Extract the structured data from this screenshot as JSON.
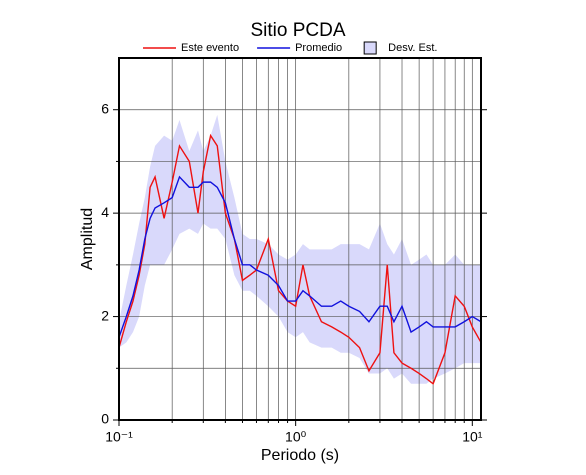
{
  "chart_data": {
    "type": "line",
    "title": "Sitio PCDA",
    "xlabel": "Periodo (s)",
    "ylabel": "Amplitud",
    "log_x": true,
    "xlim": [
      0.1,
      11.2
    ],
    "ylim": [
      0,
      7
    ],
    "xticks": [
      {
        "value": 0.1,
        "label": "10⁻¹"
      },
      {
        "value": 1,
        "label": "10⁰"
      },
      {
        "value": 10,
        "label": "10¹"
      }
    ],
    "xminor": [
      0.2,
      0.3,
      0.4,
      0.5,
      0.6,
      0.7,
      0.8,
      0.9,
      2,
      3,
      4,
      5,
      6,
      7,
      8,
      9
    ],
    "yticks": [
      0,
      2,
      4,
      6
    ],
    "yminor": [
      1,
      3,
      5
    ],
    "grid": true,
    "x": [
      0.1,
      0.11,
      0.12,
      0.13,
      0.14,
      0.15,
      0.16,
      0.18,
      0.2,
      0.22,
      0.25,
      0.28,
      0.3,
      0.33,
      0.36,
      0.4,
      0.45,
      0.5,
      0.55,
      0.6,
      0.7,
      0.8,
      0.9,
      1.0,
      1.1,
      1.2,
      1.4,
      1.6,
      1.8,
      2.0,
      2.3,
      2.6,
      3.0,
      3.3,
      3.6,
      4,
      4.5,
      5,
      5.5,
      6,
      7,
      8,
      9,
      10,
      11.2
    ],
    "band": {
      "name": "Desv. Est.",
      "color": "#d9d9fb",
      "upper": [
        1.9,
        2.6,
        3.2,
        3.8,
        4.3,
        4.9,
        5.3,
        5.5,
        5.4,
        5.8,
        5.2,
        5.6,
        5.2,
        5.5,
        5.9,
        5.0,
        4.3,
        3.6,
        3.5,
        3.5,
        3.4,
        3.2,
        3.1,
        3.2,
        3.4,
        3.3,
        3.3,
        3.3,
        3.4,
        3.4,
        3.4,
        3.3,
        3.8,
        3.4,
        3.2,
        3.5,
        3.0,
        3.1,
        3.2,
        3.0,
        3.0,
        3.2,
        3.0,
        3.0,
        3.0
      ],
      "lower": [
        1.4,
        1.5,
        1.7,
        2.0,
        2.6,
        3.0,
        3.0,
        3.0,
        3.3,
        3.6,
        3.7,
        3.6,
        3.8,
        3.7,
        3.7,
        3.5,
        2.8,
        2.5,
        2.5,
        2.4,
        2.2,
        2.0,
        1.7,
        1.6,
        1.7,
        1.5,
        1.4,
        1.4,
        1.3,
        1.3,
        1.2,
        0.9,
        0.9,
        1.0,
        0.8,
        0.9,
        0.7,
        0.7,
        0.7,
        0.8,
        0.9,
        1.0,
        1.1,
        1.1,
        1.1
      ]
    },
    "series": [
      {
        "name": "Este evento",
        "color": "#ee1111",
        "values": [
          1.4,
          1.9,
          2.3,
          2.8,
          3.4,
          4.5,
          4.7,
          3.9,
          4.6,
          5.3,
          5.0,
          4.0,
          4.8,
          5.5,
          5.3,
          4.0,
          3.5,
          2.7,
          2.8,
          2.9,
          3.5,
          2.5,
          2.3,
          2.2,
          3.0,
          2.4,
          1.9,
          1.8,
          1.7,
          1.6,
          1.4,
          0.95,
          1.3,
          3.0,
          1.3,
          1.1,
          1.0,
          0.9,
          0.8,
          0.7,
          1.3,
          2.4,
          2.2,
          1.8,
          1.5
        ]
      },
      {
        "name": "Promedio",
        "color": "#1111dd",
        "values": [
          1.6,
          2.0,
          2.4,
          2.9,
          3.5,
          3.9,
          4.1,
          4.2,
          4.3,
          4.7,
          4.5,
          4.5,
          4.6,
          4.6,
          4.5,
          4.2,
          3.5,
          3.0,
          3.0,
          2.9,
          2.8,
          2.6,
          2.3,
          2.3,
          2.5,
          2.4,
          2.2,
          2.2,
          2.3,
          2.2,
          2.1,
          1.9,
          2.2,
          2.2,
          1.9,
          2.2,
          1.7,
          1.8,
          1.9,
          1.8,
          1.8,
          1.8,
          1.9,
          2.0,
          1.9
        ]
      }
    ]
  }
}
